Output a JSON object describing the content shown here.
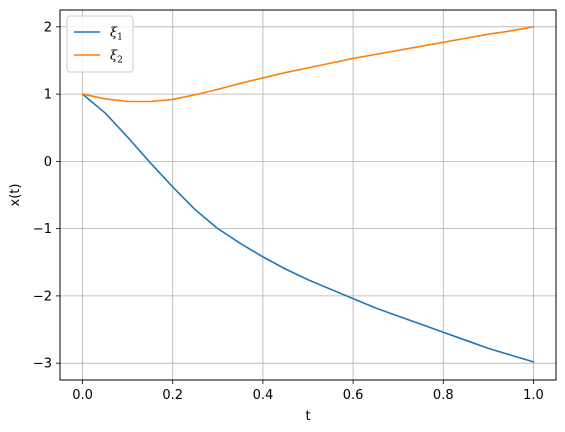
{
  "chart_data": {
    "type": "line",
    "xlabel": "t",
    "ylabel": "x(t)",
    "xlim": [
      -0.05,
      1.05
    ],
    "ylim": [
      -3.25,
      2.25
    ],
    "xticks": [
      0.0,
      0.2,
      0.4,
      0.6,
      0.8,
      1.0
    ],
    "xtick_labels": [
      "0.0",
      "0.2",
      "0.4",
      "0.6",
      "0.8",
      "1.0"
    ],
    "yticks": [
      -3,
      -2,
      -1,
      0,
      1,
      2
    ],
    "ytick_labels": [
      "−3",
      "−2",
      "−1",
      "0",
      "1",
      "2"
    ],
    "grid": true,
    "legend_position": "top-left",
    "series": [
      {
        "name": "ξ",
        "subscript": "1",
        "color": "#1f77b4",
        "x": [
          0.0,
          0.05,
          0.1,
          0.15,
          0.2,
          0.25,
          0.3,
          0.35,
          0.4,
          0.45,
          0.5,
          0.55,
          0.6,
          0.65,
          0.7,
          0.75,
          0.8,
          0.85,
          0.9,
          0.95,
          1.0
        ],
        "y": [
          1.0,
          0.72,
          0.36,
          -0.02,
          -0.38,
          -0.72,
          -1.0,
          -1.22,
          -1.42,
          -1.6,
          -1.76,
          -1.9,
          -2.04,
          -2.18,
          -2.3,
          -2.42,
          -2.54,
          -2.66,
          -2.78,
          -2.88,
          -2.98
        ]
      },
      {
        "name": "ξ",
        "subscript": "2",
        "color": "#ff7f0e",
        "x": [
          0.0,
          0.05,
          0.1,
          0.15,
          0.2,
          0.25,
          0.3,
          0.35,
          0.4,
          0.45,
          0.5,
          0.55,
          0.6,
          0.65,
          0.7,
          0.75,
          0.8,
          0.85,
          0.9,
          0.95,
          1.0
        ],
        "y": [
          1.0,
          0.93,
          0.89,
          0.89,
          0.92,
          0.99,
          1.07,
          1.16,
          1.24,
          1.32,
          1.39,
          1.46,
          1.53,
          1.59,
          1.65,
          1.71,
          1.77,
          1.83,
          1.89,
          1.94,
          2.0
        ]
      }
    ]
  }
}
